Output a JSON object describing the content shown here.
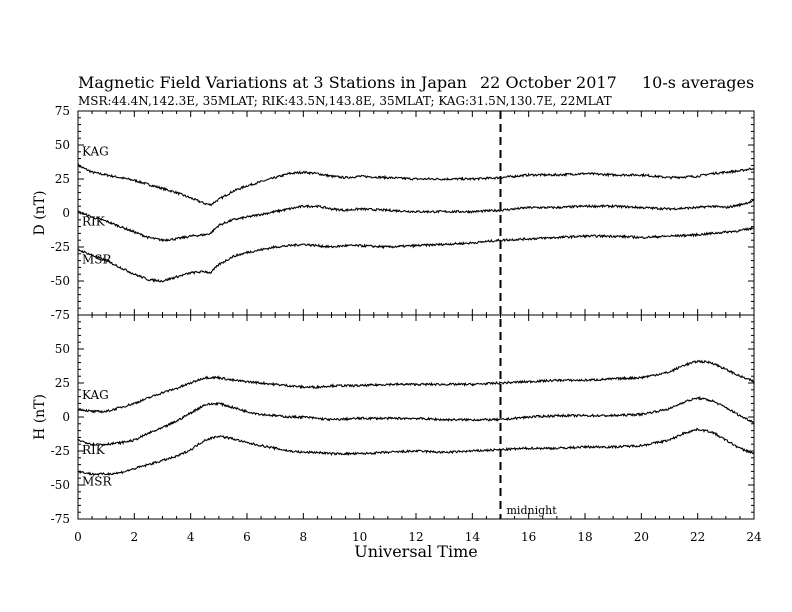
{
  "header": {
    "title_left": "Magnetic Field Variations at 3 Stations in Japan",
    "title_date": "22 October 2017",
    "title_avg": "10-s averages",
    "subtitle": "MSR:44.4N,142.3E, 35MLAT;  RIK:43.5N,143.8E, 35MLAT;  KAG:31.5N,130.7E, 22MLAT"
  },
  "xaxis": {
    "label": "Universal Time",
    "range": [
      0,
      24
    ],
    "ticks": [
      "0",
      "2",
      "4",
      "6",
      "8",
      "10",
      "12",
      "14",
      "16",
      "18",
      "20",
      "22",
      "24"
    ]
  },
  "annotation": {
    "x": 15,
    "text": "midnight"
  },
  "chart_data": [
    {
      "type": "line",
      "panel": "top",
      "ylabel": "D (nT)",
      "ylim": [
        -75,
        75
      ],
      "yticks": [
        "75",
        "50",
        "25",
        "0",
        "-25",
        "-50",
        "-75"
      ],
      "x": [
        0,
        0.5,
        1,
        1.5,
        2,
        2.5,
        3,
        3.5,
        4,
        4.5,
        4.7,
        5,
        5.5,
        6,
        6.5,
        7,
        7.5,
        8,
        8.5,
        9,
        9.5,
        10,
        11,
        12,
        13,
        14,
        15,
        16,
        17,
        18,
        19,
        20,
        21,
        22,
        22.5,
        23,
        23.5,
        24
      ],
      "series": [
        {
          "name": "KAG",
          "values": [
            35,
            30,
            28,
            26,
            24,
            21,
            18,
            15,
            11,
            7,
            6,
            10,
            16,
            20,
            23,
            26,
            29,
            30,
            29,
            27,
            26,
            27,
            26,
            25,
            25,
            25,
            26,
            28,
            28,
            29,
            28,
            28,
            26,
            27,
            29,
            30,
            31,
            33
          ]
        },
        {
          "name": "RIK",
          "values": [
            1,
            -3,
            -6,
            -10,
            -14,
            -18,
            -20,
            -19,
            -17,
            -16,
            -15,
            -9,
            -5,
            -3,
            -1,
            1,
            3,
            5,
            5,
            3,
            2,
            3,
            2,
            1,
            1,
            1,
            2,
            4,
            4,
            5,
            5,
            4,
            3,
            4,
            5,
            4,
            6,
            9
          ]
        },
        {
          "name": "MSR",
          "values": [
            -27,
            -31,
            -35,
            -40,
            -45,
            -49,
            -50,
            -47,
            -44,
            -43,
            -44,
            -38,
            -32,
            -29,
            -27,
            -25,
            -24,
            -23,
            -24,
            -25,
            -24,
            -24,
            -25,
            -24,
            -23,
            -22,
            -20,
            -19,
            -18,
            -17,
            -17,
            -18,
            -17,
            -16,
            -15,
            -14,
            -13,
            -11
          ]
        }
      ]
    },
    {
      "type": "line",
      "panel": "bottom",
      "ylabel": "H (nT)",
      "ylim": [
        -75,
        75
      ],
      "yticks": [
        "75",
        "50",
        "25",
        "0",
        "-25",
        "-50",
        "-75"
      ],
      "x": [
        0,
        0.5,
        1,
        1.5,
        2,
        2.5,
        3,
        3.5,
        4,
        4.5,
        5,
        5.5,
        6,
        6.5,
        7,
        7.5,
        8,
        8.5,
        9,
        10,
        11,
        12,
        13,
        14,
        15,
        16,
        17,
        18,
        19,
        20,
        21,
        21.5,
        22,
        22.5,
        23,
        23.5,
        24
      ],
      "series": [
        {
          "name": "KAG",
          "values": [
            6,
            4,
            4,
            7,
            10,
            14,
            18,
            21,
            25,
            29,
            29,
            27,
            26,
            25,
            24,
            23,
            22,
            22,
            23,
            23,
            24,
            24,
            24,
            24,
            25,
            26,
            27,
            27,
            28,
            29,
            33,
            38,
            41,
            40,
            35,
            30,
            26
          ]
        },
        {
          "name": "RIK",
          "values": [
            -17,
            -20,
            -20,
            -19,
            -17,
            -12,
            -8,
            -3,
            3,
            9,
            10,
            7,
            4,
            2,
            1,
            0,
            0,
            -1,
            -2,
            -1,
            -1,
            -1,
            -2,
            -2,
            -2,
            0,
            1,
            1,
            1,
            2,
            6,
            11,
            14,
            12,
            7,
            1,
            -4
          ]
        },
        {
          "name": "MSR",
          "values": [
            -40,
            -42,
            -42,
            -41,
            -38,
            -35,
            -32,
            -29,
            -24,
            -17,
            -14,
            -16,
            -19,
            -21,
            -23,
            -25,
            -26,
            -26,
            -27,
            -27,
            -26,
            -25,
            -26,
            -25,
            -24,
            -23,
            -23,
            -22,
            -22,
            -21,
            -17,
            -12,
            -9,
            -11,
            -17,
            -23,
            -27
          ]
        }
      ]
    }
  ]
}
